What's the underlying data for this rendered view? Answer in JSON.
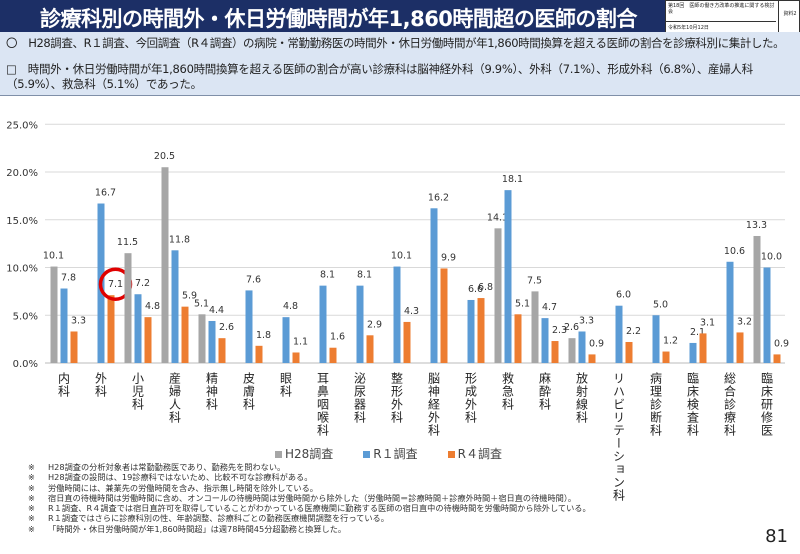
{
  "header": {
    "title": "診療科別の時間外・休日労働時間が年1,860時間超の医師の割合",
    "meeting": "第18回　医師の働き方改革の推進に関する検討会",
    "date": "令和5年10月12日",
    "doc_no": "資料2"
  },
  "bullets": [
    "〇　H28調査、R１調査、今回調査（R４調査）の病院・常勤勤務医の時間外・休日労働時間が年1,860時間換算を超える医師の割合を診療科別に集計した。",
    "□　時間外・休日労働時間が年1,860時間換算を超える医師の割合が高い診療科は脳神経外科（9.9%）、外科（7.1%）、形成外科（6.8%）、産婦人科（5.9%）、救急科（5.1%）であった。"
  ],
  "chart_data": {
    "type": "bar",
    "title": "",
    "xlabel": "",
    "ylabel": "",
    "ylim": [
      0,
      25
    ],
    "yticks": [
      "0.0%",
      "5.0%",
      "10.0%",
      "15.0%",
      "20.0%",
      "25.0%"
    ],
    "grid": true,
    "legend_position": "bottom",
    "categories": [
      "内科",
      "外科",
      "小児科",
      "産婦人科",
      "精神科",
      "皮膚科",
      "眼科",
      "耳鼻咽喉科",
      "泌尿器科",
      "整形外科",
      "脳神経外科",
      "形成外科",
      "救急科",
      "麻酔科",
      "放射線科",
      "リハビリテーション科",
      "病理診断科",
      "臨床検査科",
      "総合診療科",
      "臨床研修医"
    ],
    "series": [
      {
        "name": "H28調査",
        "color": "#a6a6a6",
        "values": [
          10.1,
          null,
          11.5,
          20.5,
          5.1,
          null,
          null,
          null,
          null,
          null,
          null,
          null,
          14.1,
          7.5,
          2.6,
          null,
          null,
          null,
          null,
          13.3
        ]
      },
      {
        "name": "R１調査",
        "color": "#5b9bd5",
        "values": [
          7.8,
          16.7,
          7.2,
          11.8,
          4.4,
          7.6,
          4.8,
          8.1,
          8.1,
          10.1,
          16.2,
          6.6,
          18.1,
          4.7,
          3.3,
          6.0,
          5.0,
          2.1,
          10.6,
          10.0
        ]
      },
      {
        "name": "R４調査",
        "color": "#ed7d31",
        "values": [
          3.3,
          7.1,
          4.8,
          5.9,
          2.6,
          1.8,
          1.1,
          1.6,
          2.9,
          4.3,
          9.9,
          6.8,
          5.1,
          2.3,
          0.9,
          2.2,
          1.2,
          3.1,
          3.2,
          0.9
        ]
      }
    ],
    "highlight": {
      "category": "外科",
      "series": "R４調査",
      "color": "#e00000"
    }
  },
  "notes": [
    {
      "mark": "※",
      "text": "H28調査の分析対象者は常勤勤務医であり、勤務先を問わない。"
    },
    {
      "mark": "※",
      "text": "H28調査の設問は、19診療科ではないため、比較不可な診療科がある。"
    },
    {
      "mark": "※",
      "text": "労働時間には、兼業先の労働時間を含み、指示無し時間を除外している。"
    },
    {
      "mark": "※",
      "text": "宿日直の待機時間は労働時間に含め、オンコールの待機時間は労働時間から除外した（労働時間＝診療時間＋診療外時間＋宿日直の待機時間）。"
    },
    {
      "mark": "※",
      "text": "R１調査、R４調査では宿日直許可を取得していることがわかっている医療機関に勤務する医師の宿日直中の待機時間を労働時間から除外している。"
    },
    {
      "mark": "※",
      "text": "R１調査ではさらに診療科別の性、年齢調整、診療科ごとの勤務医療機関調整を行っている。"
    },
    {
      "mark": "※",
      "text": "「時間外・休日労働時間が年1,860時間超」は週78時間45分超勤務と換算した。"
    }
  ],
  "page_number": "81"
}
